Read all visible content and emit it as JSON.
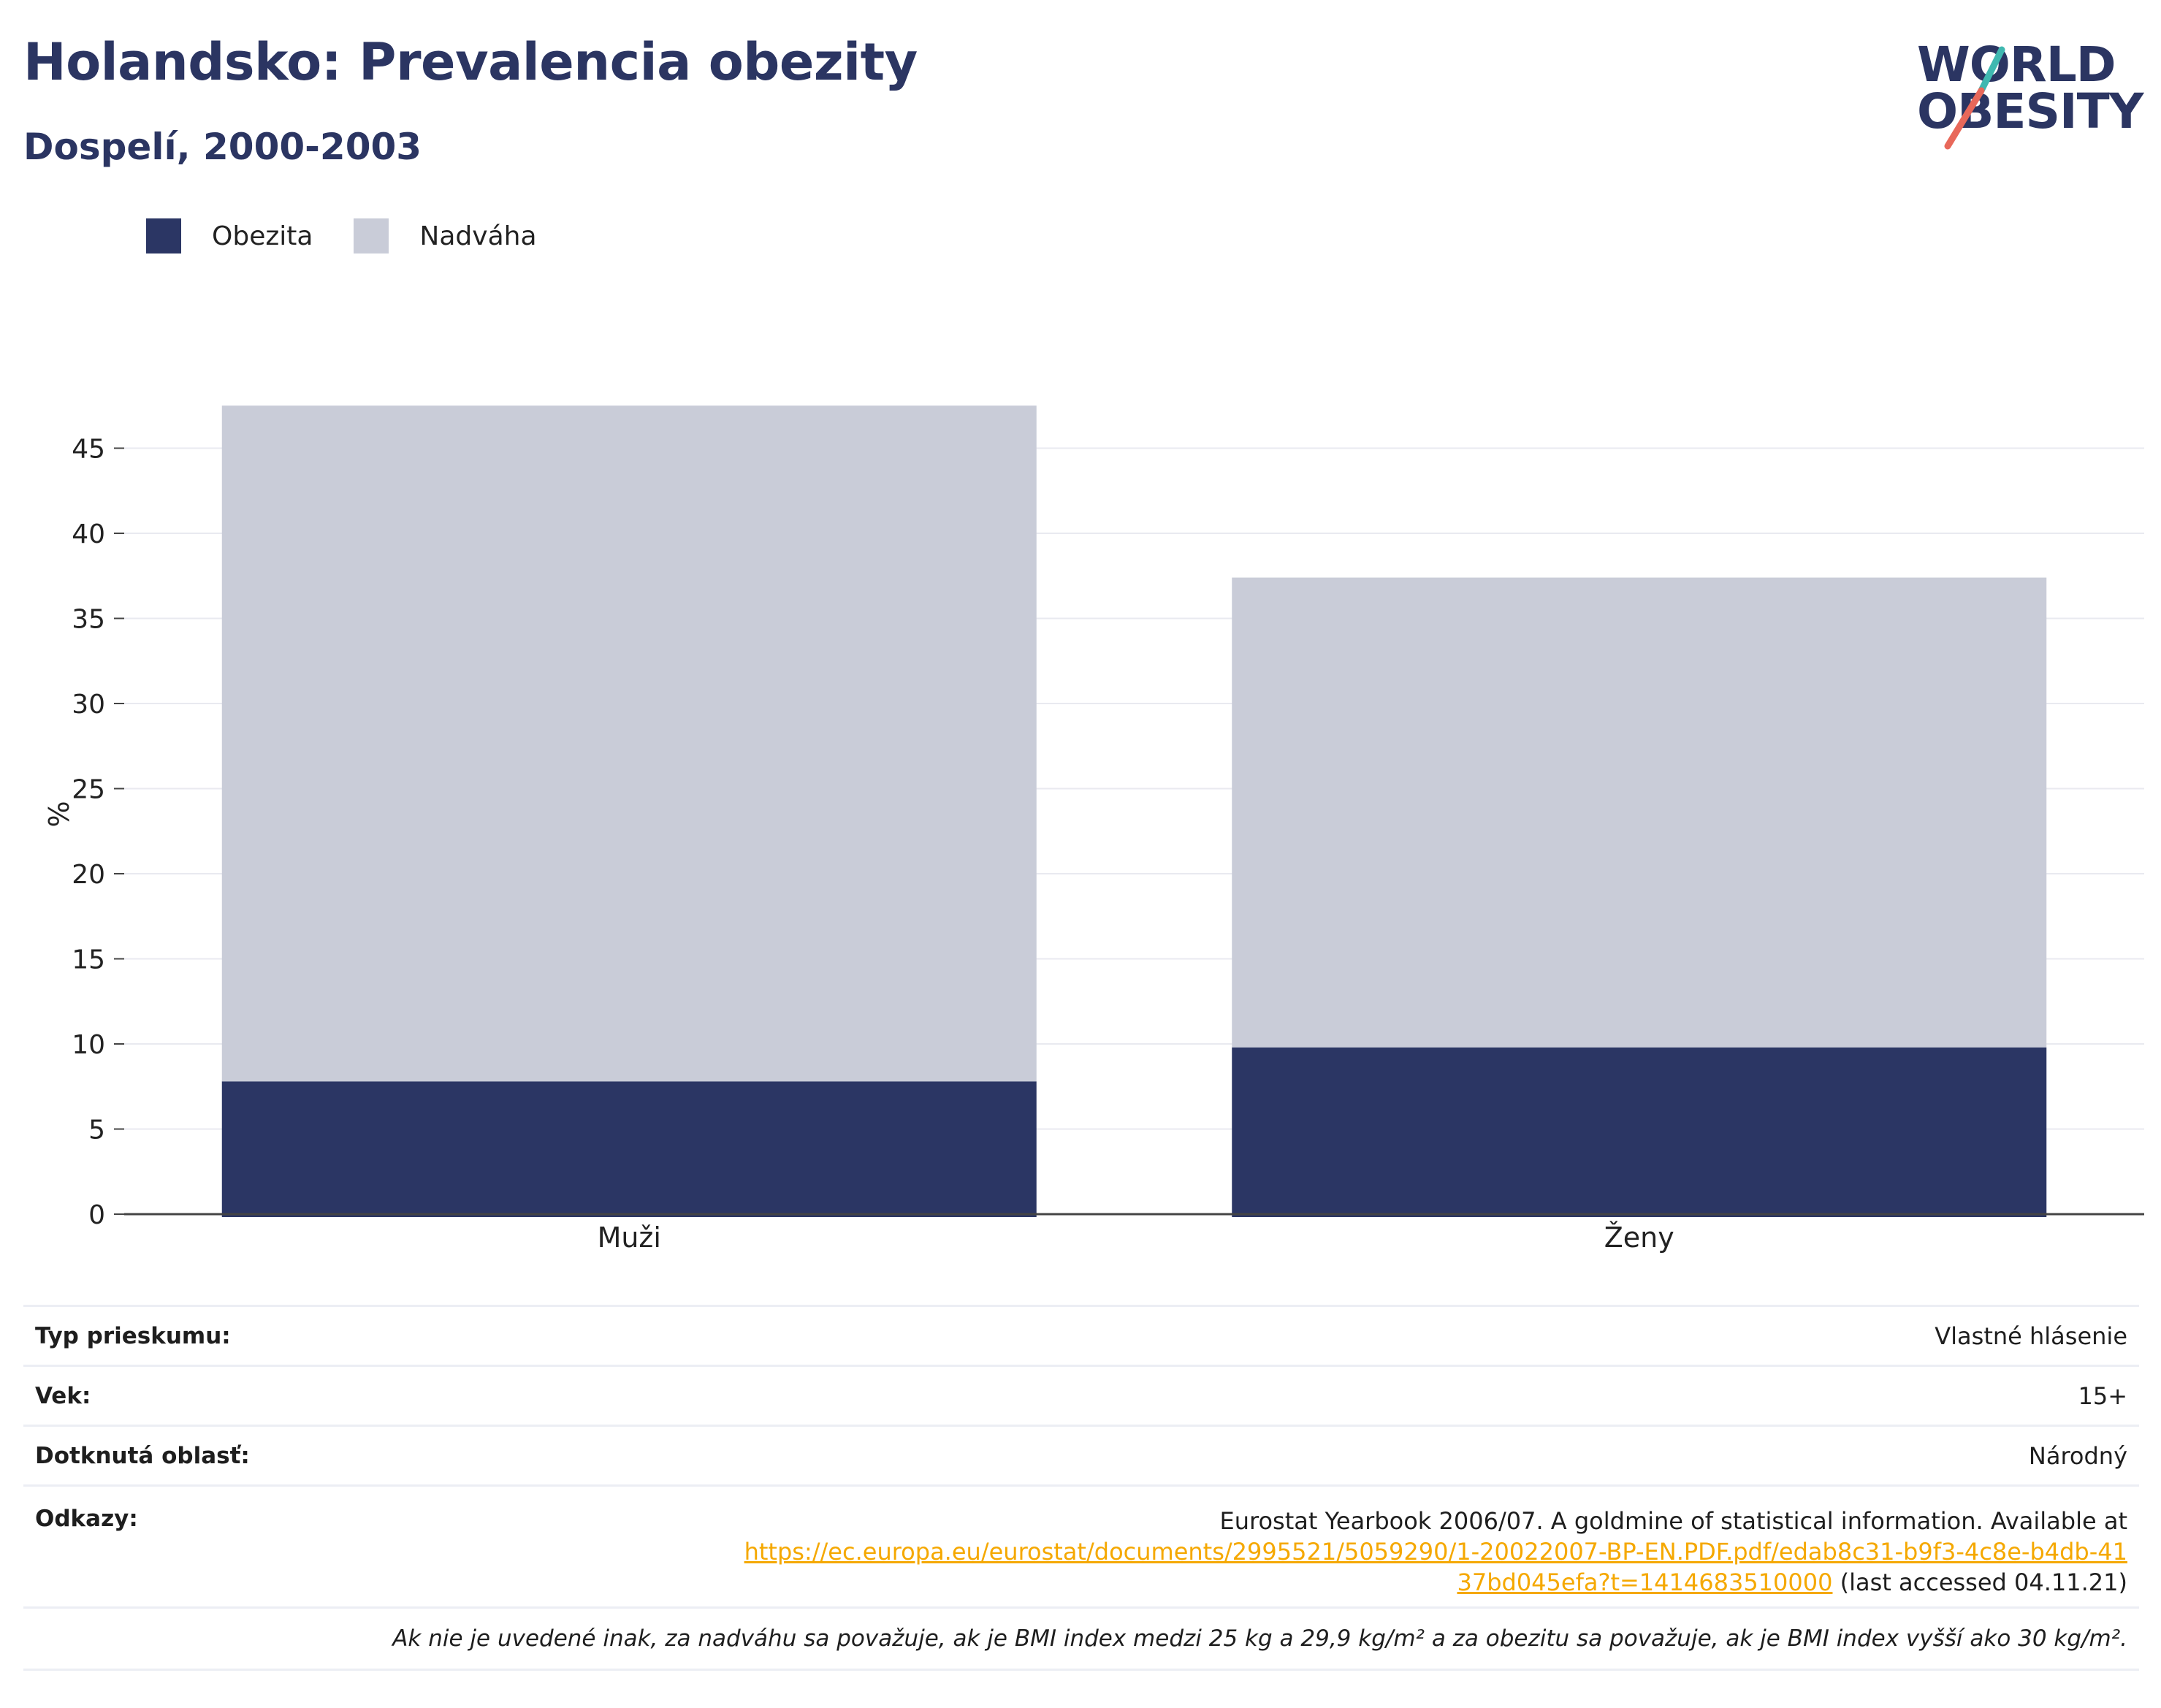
{
  "title": "Holandsko: Prevalencia obezity",
  "subtitle": "Dospelí, 2000-2003",
  "logo": {
    "line1": "WORLD",
    "line2": "OBESITY",
    "slash_colors": [
      "#3fb8b0",
      "#e8685a"
    ]
  },
  "legend": [
    {
      "label": "Obezita",
      "color": "#2b3664"
    },
    {
      "label": "Nadváha",
      "color": "#c9ccd8"
    }
  ],
  "chart_data": {
    "type": "bar",
    "stacked": true,
    "categories": [
      "Muži",
      "Ženy"
    ],
    "series": [
      {
        "name": "Obezita",
        "values": [
          7.8,
          9.8
        ],
        "color": "#2b3664"
      },
      {
        "name": "Nadváha",
        "values": [
          39.7,
          27.6
        ],
        "color": "#c9ccd8"
      }
    ],
    "ylabel": "%",
    "ylim": [
      0,
      47.5
    ],
    "yticks": [
      0,
      5,
      10,
      15,
      20,
      25,
      30,
      35,
      40,
      45
    ],
    "grid": true
  },
  "info": {
    "survey_type_label": "Typ prieskumu:",
    "survey_type_value": "Vlastné hlásenie",
    "age_label": "Vek:",
    "age_value": "15+",
    "area_label": "Dotknutá oblasť:",
    "area_value": "Národný",
    "refs_label": "Odkazy:",
    "refs_text": "Eurostat Yearbook 2006/07. A goldmine of statistical information. Available at",
    "refs_link": "https://ec.europa.eu/eurostat/documents/2995521/5059290/1-20022007-BP-EN.PDF.pdf/edab8c31-b9f3-4c8e-b4db-4137bd045efa?t=1414683510000",
    "refs_suffix": " (last accessed 04.11.21)",
    "note": "Ak nie je uvedené inak, za nadváhu sa považuje, ak je BMI index medzi 25 kg a 29,9 kg/m² a za obezitu sa považuje, ak je BMI index vyšší ako 30 kg/m²."
  }
}
